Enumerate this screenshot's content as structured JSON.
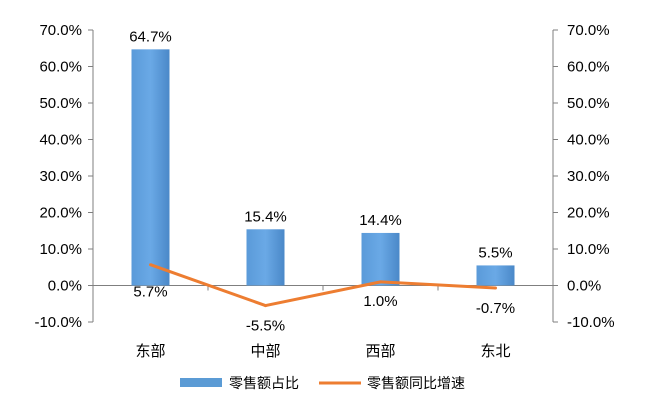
{
  "chart_data": {
    "type": "bar",
    "categories": [
      "东部",
      "中部",
      "西部",
      "东北"
    ],
    "series": [
      {
        "name": "零售额占比",
        "kind": "bar",
        "color": "#5b9bd5",
        "values": [
          64.7,
          15.4,
          14.4,
          5.5
        ],
        "labels": [
          "64.7%",
          "15.4%",
          "14.4%",
          "5.5%"
        ]
      },
      {
        "name": "零售额同比增速",
        "kind": "line",
        "color": "#ed7d31",
        "values": [
          5.7,
          -5.5,
          1.0,
          -0.7
        ],
        "labels": [
          "5.7%",
          "-5.5%",
          "1.0%",
          "-0.7%"
        ]
      }
    ],
    "ylim": [
      -10,
      70
    ],
    "y_ticks": [
      "-10.0%",
      "0.0%",
      "10.0%",
      "20.0%",
      "30.0%",
      "40.0%",
      "50.0%",
      "60.0%",
      "70.0%"
    ],
    "y2_ticks": [
      "-10.0%",
      "0.0%",
      "10.0%",
      "20.0%",
      "30.0%",
      "40.0%",
      "50.0%",
      "60.0%",
      "70.0%"
    ],
    "legend_position": "bottom",
    "grid": false
  }
}
